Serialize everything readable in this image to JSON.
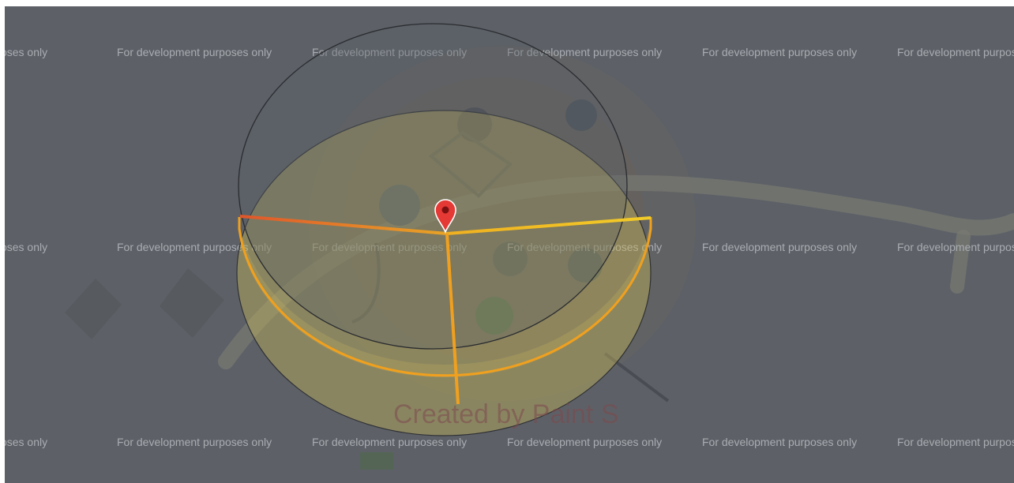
{
  "map": {
    "watermark": "For development purposes only",
    "credit": "Created by Paint S",
    "colors": {
      "background": "#5d6167",
      "cylinder_fill": "#c8b85a",
      "rim_outline": "#3a3c40",
      "arc_edge": "#f0a01e",
      "radial_left": "#e0562a",
      "radial_right": "#f2c625",
      "radial_down": "#f0a01e",
      "marker": "#e53935"
    },
    "icons": {
      "marker": "map-pin-icon"
    }
  }
}
